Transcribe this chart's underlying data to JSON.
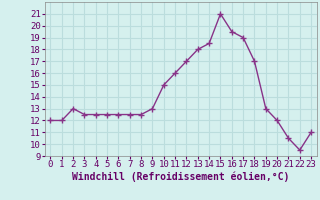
{
  "x": [
    0,
    1,
    2,
    3,
    4,
    5,
    6,
    7,
    8,
    9,
    10,
    11,
    12,
    13,
    14,
    15,
    16,
    17,
    18,
    19,
    20,
    21,
    22,
    23
  ],
  "y": [
    12,
    12,
    13,
    12.5,
    12.5,
    12.5,
    12.5,
    12.5,
    12.5,
    13,
    15,
    16,
    17,
    18,
    18.5,
    21,
    19.5,
    19,
    17,
    13,
    12,
    10.5,
    9.5,
    11
  ],
  "line_color": "#883388",
  "marker": "+",
  "marker_size": 4,
  "bg_color": "#d5f0ee",
  "grid_color": "#bbdddd",
  "xlabel": "Windchill (Refroidissement éolien,°C)",
  "xlabel_fontsize": 7,
  "ylim": [
    9,
    22
  ],
  "xlim": [
    -0.5,
    23.5
  ],
  "yticks": [
    9,
    10,
    11,
    12,
    13,
    14,
    15,
    16,
    17,
    18,
    19,
    20,
    21
  ],
  "xticks": [
    0,
    1,
    2,
    3,
    4,
    5,
    6,
    7,
    8,
    9,
    10,
    11,
    12,
    13,
    14,
    15,
    16,
    17,
    18,
    19,
    20,
    21,
    22,
    23
  ],
  "tick_fontsize": 6.5,
  "line_width": 1.0
}
